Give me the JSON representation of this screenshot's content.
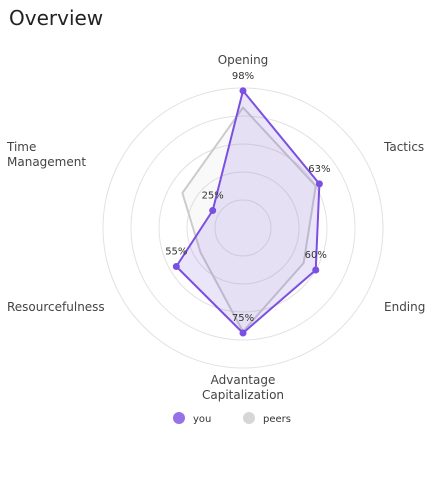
{
  "chart_data": {
    "type": "radar",
    "title": "Overview",
    "categories": [
      "Opening",
      "Tactics",
      "Ending",
      "Advantage Capitalization",
      "Resourcefulness",
      "Time Management"
    ],
    "series": [
      {
        "name": "you",
        "color": "#7b4fe0",
        "values": [
          98,
          63,
          60,
          75,
          55,
          25
        ],
        "value_labels": [
          "98%",
          "63%",
          "60%",
          "75%",
          "55%",
          "25%"
        ]
      },
      {
        "name": "peers",
        "color": "#cccccc",
        "values": [
          86,
          60,
          50,
          74,
          35,
          50
        ]
      }
    ],
    "rlim": [
      0,
      100
    ],
    "rticks": [
      20,
      40,
      60,
      80,
      100
    ],
    "grid": true
  }
}
